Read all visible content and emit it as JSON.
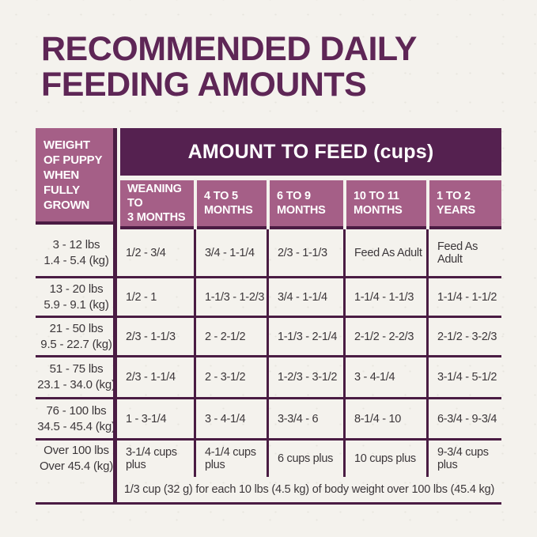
{
  "page": {
    "title_line1": "RECOMMENDED DAILY",
    "title_line2": "FEEDING AMOUNTS"
  },
  "table": {
    "corner_header": "WEIGHT\nOF PUPPY\nWHEN\nFULLY\nGROWN",
    "amount_header": "AMOUNT TO FEED (cups)",
    "column_headers": [
      "WEANING TO\n3 MONTHS",
      "4 TO 5\nMONTHS",
      "6 TO 9\nMONTHS",
      "10 TO 11\nMONTHS",
      "1 TO 2\nYEARS"
    ],
    "rows": [
      {
        "weight": "3 - 12 lbs\n1.4 - 5.4 (kg)",
        "values": [
          "1/2 - 3/4",
          "3/4 - 1-1/4",
          "2/3 - 1-1/3",
          "Feed As Adult",
          "Feed As Adult"
        ]
      },
      {
        "weight": "13 - 20 lbs\n5.9 - 9.1 (kg)",
        "values": [
          "1/2 - 1",
          "1-1/3 - 1-2/3",
          "3/4 - 1-1/4",
          "1-1/4 - 1-1/3",
          "1-1/4 - 1-1/2"
        ]
      },
      {
        "weight": "21 - 50 lbs\n9.5 - 22.7 (kg)",
        "values": [
          "2/3 - 1-1/3",
          "2 - 2-1/2",
          "1-1/3 - 2-1/4",
          "2-1/2 - 2-2/3",
          "2-1/2 - 3-2/3"
        ]
      },
      {
        "weight": "51 - 75 lbs\n23.1 - 34.0 (kg)",
        "values": [
          "2/3 - 1-1/4",
          "2 - 3-1/2",
          "1-2/3 - 3-1/2",
          "3 - 4-1/4",
          "3-1/4 - 5-1/2"
        ]
      },
      {
        "weight": "76 - 100 lbs\n34.5 - 45.4 (kg)",
        "values": [
          "1 - 3-1/4",
          "3 - 4-1/4",
          "3-3/4 - 6",
          "8-1/4 - 10",
          "6-3/4 - 9-3/4"
        ]
      },
      {
        "weight": "Over 100 lbs\nOver 45.4 (kg)",
        "values": [
          "3-1/4 cups plus",
          "4-1/4 cups plus",
          "6 cups plus",
          "10 cups plus",
          "9-3/4 cups plus"
        ]
      }
    ],
    "footer_note": "1/3 cup (32 g) for each 10 lbs (4.5 kg) of body weight over 100 lbs (45.4 kg)"
  },
  "colors": {
    "accent_dark": "#552150",
    "accent_light": "#a55f87",
    "title": "#5e2656",
    "border": "#4a1c43",
    "text": "#3c373a",
    "background": "#f4f2ed"
  },
  "chart_data": {
    "type": "table",
    "title": "RECOMMENDED DAILY FEEDING AMOUNTS",
    "unit": "cups per day",
    "row_header": "WEIGHT OF PUPPY WHEN FULLY GROWN",
    "column_group_header": "AMOUNT TO FEED (cups)",
    "columns": [
      "WEANING TO 3 MONTHS",
      "4 TO 5 MONTHS",
      "6 TO 9 MONTHS",
      "10 TO 11 MONTHS",
      "1 TO 2 YEARS"
    ],
    "rows": [
      {
        "weight_lbs": "3 - 12 lbs",
        "weight_kg": "1.4 - 5.4 (kg)",
        "amounts": [
          "1/2 - 3/4",
          "3/4 - 1-1/4",
          "2/3 - 1-1/3",
          "Feed As Adult",
          "Feed As Adult"
        ]
      },
      {
        "weight_lbs": "13 - 20 lbs",
        "weight_kg": "5.9 - 9.1 (kg)",
        "amounts": [
          "1/2 - 1",
          "1-1/3 - 1-2/3",
          "3/4 - 1-1/4",
          "1-1/4 - 1-1/3",
          "1-1/4 - 1-1/2"
        ]
      },
      {
        "weight_lbs": "21 - 50 lbs",
        "weight_kg": "9.5 - 22.7 (kg)",
        "amounts": [
          "2/3 - 1-1/3",
          "2 - 2-1/2",
          "1-1/3 - 2-1/4",
          "2-1/2 - 2-2/3",
          "2-1/2 - 3-2/3"
        ]
      },
      {
        "weight_lbs": "51 - 75 lbs",
        "weight_kg": "23.1 - 34.0 (kg)",
        "amounts": [
          "2/3 - 1-1/4",
          "2 - 3-1/2",
          "1-2/3 - 3-1/2",
          "3 - 4-1/4",
          "3-1/4 - 5-1/2"
        ]
      },
      {
        "weight_lbs": "76 - 100 lbs",
        "weight_kg": "34.5 - 45.4 (kg)",
        "amounts": [
          "1 - 3-1/4",
          "3 - 4-1/4",
          "3-3/4 - 6",
          "8-1/4 - 10",
          "6-3/4 - 9-3/4"
        ]
      },
      {
        "weight_lbs": "Over 100 lbs",
        "weight_kg": "Over 45.4 (kg)",
        "amounts": [
          "3-1/4 cups plus",
          "4-1/4 cups plus",
          "6 cups plus",
          "10 cups plus",
          "9-3/4 cups plus"
        ]
      }
    ],
    "footnote": "1/3 cup (32 g) for each 10 lbs (4.5 kg) of body weight over 100 lbs (45.4 kg)"
  }
}
